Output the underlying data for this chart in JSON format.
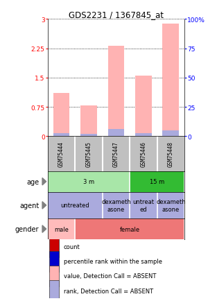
{
  "title": "GDS2231 / 1367845_at",
  "samples": [
    "GSM75444",
    "GSM75445",
    "GSM75447",
    "GSM75446",
    "GSM75448"
  ],
  "bar_values": [
    1.1,
    0.78,
    2.32,
    1.55,
    2.88
  ],
  "bar_rank_values": [
    0.07,
    0.05,
    0.18,
    0.08,
    0.14
  ],
  "bar_color": "#FFB3B3",
  "rank_color": "#AAAADD",
  "ylim_left": [
    0,
    3
  ],
  "ylim_right": [
    0,
    100
  ],
  "yticks_left": [
    0,
    0.75,
    1.5,
    2.25,
    3
  ],
  "yticks_right": [
    0,
    25,
    50,
    75,
    100
  ],
  "ytick_labels_left": [
    "0",
    "0.75",
    "1.5",
    "2.25",
    "3"
  ],
  "ytick_labels_right": [
    "0",
    "25",
    "50",
    "75",
    "100%"
  ],
  "age_groups": [
    {
      "label": "3 m",
      "span": [
        0,
        3
      ],
      "color": "#A8E6A8"
    },
    {
      "label": "15 m",
      "span": [
        3,
        5
      ],
      "color": "#33BB33"
    }
  ],
  "agent_groups": [
    {
      "label": "untreated",
      "span": [
        0,
        2
      ],
      "color": "#AAAADD"
    },
    {
      "label": "dexameth\nasone",
      "span": [
        2,
        3
      ],
      "color": "#AAAADD"
    },
    {
      "label": "untreat\ned",
      "span": [
        3,
        4
      ],
      "color": "#AAAADD"
    },
    {
      "label": "dexameth\nasone",
      "span": [
        4,
        5
      ],
      "color": "#AAAADD"
    }
  ],
  "gender_groups": [
    {
      "label": "male",
      "span": [
        0,
        1
      ],
      "color": "#FFBBBB"
    },
    {
      "label": "female",
      "span": [
        1,
        5
      ],
      "color": "#EE7777"
    }
  ],
  "row_labels": [
    "age",
    "agent",
    "gender"
  ],
  "legend_items": [
    {
      "color": "#CC0000",
      "label": "count"
    },
    {
      "color": "#0000CC",
      "label": "percentile rank within the sample"
    },
    {
      "color": "#FFB3B3",
      "label": "value, Detection Call = ABSENT"
    },
    {
      "color": "#AAAADD",
      "label": "rank, Detection Call = ABSENT"
    }
  ]
}
